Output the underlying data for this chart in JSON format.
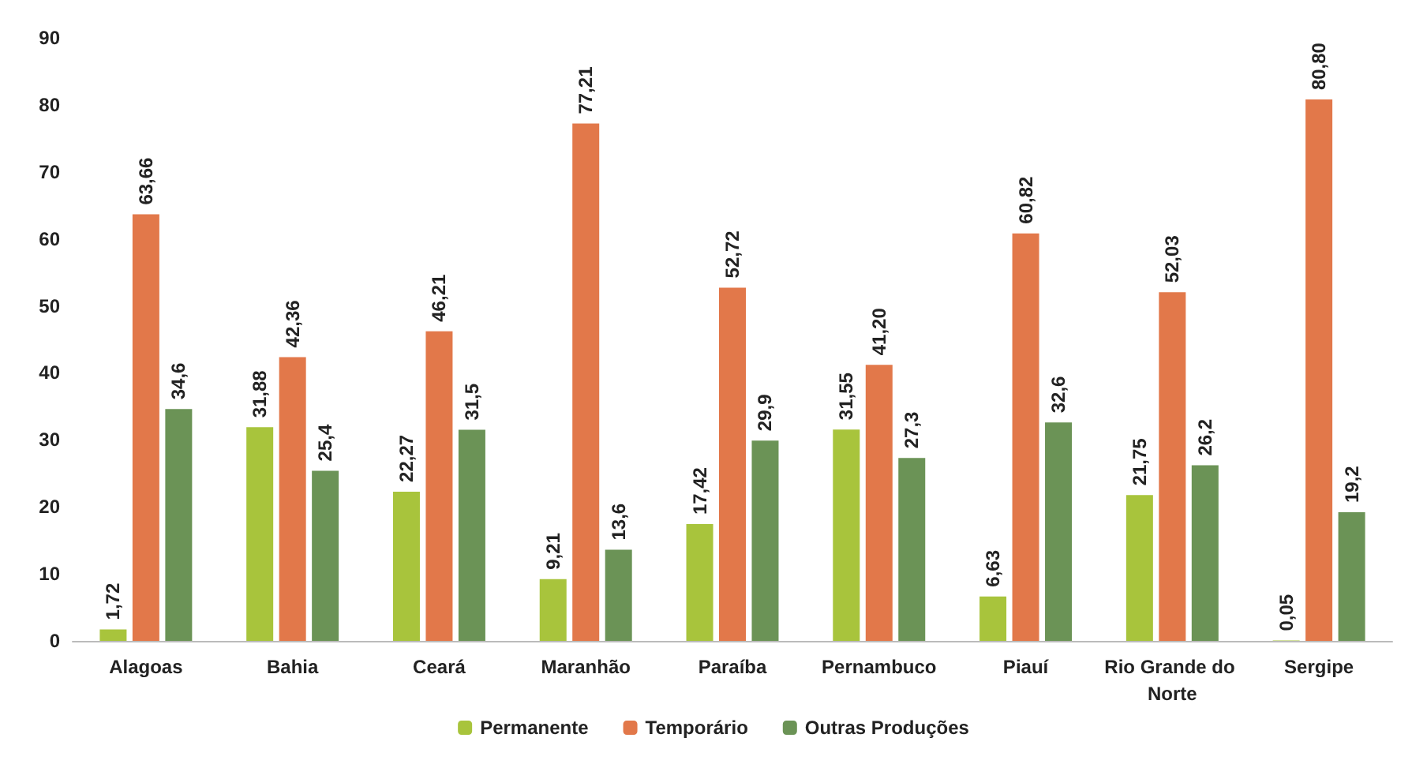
{
  "chart_data": {
    "type": "bar",
    "categories": [
      "Alagoas",
      "Bahia",
      "Ceará",
      "Maranhão",
      "Paraíba",
      "Pernambuco",
      "Piauí",
      "Rio Grande do Norte",
      "Sergipe"
    ],
    "series": [
      {
        "name": "Permanente",
        "color": "#a8c43c",
        "values": [
          1.72,
          31.88,
          22.27,
          9.21,
          17.42,
          31.55,
          6.63,
          21.75,
          0.05
        ],
        "value_labels": [
          "1,72",
          "31,88",
          "22,27",
          "9,21",
          "17,42",
          "31,55",
          "6,63",
          "21,75",
          "0,05"
        ]
      },
      {
        "name": "Temporário",
        "color": "#e2784a",
        "values": [
          63.66,
          42.36,
          46.21,
          77.21,
          52.72,
          41.2,
          60.82,
          52.03,
          80.8
        ],
        "value_labels": [
          "63,66",
          "42,36",
          "46,21",
          "77,21",
          "52,72",
          "41,20",
          "60,82",
          "52,03",
          "80,80"
        ]
      },
      {
        "name": "Outras Produções",
        "color": "#6b9356",
        "values": [
          34.6,
          25.4,
          31.5,
          13.6,
          29.9,
          27.3,
          32.6,
          26.2,
          19.2
        ],
        "value_labels": [
          "34,6",
          "25,4",
          "31,5",
          "13,6",
          "29,9",
          "27,3",
          "32,6",
          "26,2",
          "19,2"
        ]
      }
    ],
    "ylim": [
      0,
      90
    ],
    "yticks": [
      0,
      10,
      20,
      30,
      40,
      50,
      60,
      70,
      80,
      90
    ],
    "grid": false,
    "legend": "bottom"
  }
}
